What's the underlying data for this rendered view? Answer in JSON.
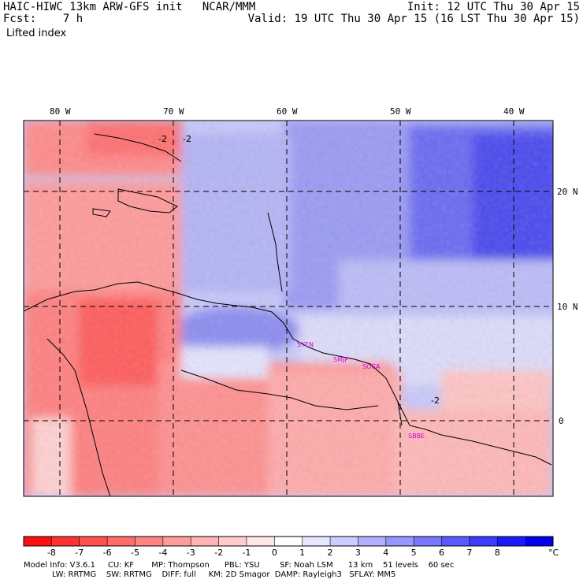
{
  "header": {
    "line1_left": "HAIC-HIWC 13km ARW-GFS init   NCAR/MMM",
    "line2_left": "Fcst:    7 h",
    "line3_left": "Lifted index",
    "line1_right": "Init: 12 UTC Thu 30 Apr 15",
    "line2_right": "Valid: 19 UTC Thu 30 Apr 15 (16 LST Thu 30 Apr 15)"
  },
  "map": {
    "lon_labels": [
      "80 W",
      "70 W",
      "60 W",
      "50 W",
      "40 W"
    ],
    "lat_labels": [
      "20 N",
      "10 N",
      "0"
    ],
    "contour_labels": [
      "-2",
      "-2",
      "-2"
    ],
    "stations": [
      "SYEN",
      "SMJP",
      "SOCA",
      "SBBE"
    ]
  },
  "colorbar": {
    "ticks": [
      "-8",
      "-7",
      "-6",
      "-5",
      "-4",
      "-3",
      "-2",
      "-1",
      "0",
      "1",
      "2",
      "3",
      "4",
      "5",
      "6",
      "7",
      "8"
    ],
    "unit": "°C",
    "colors": [
      "#ff1010",
      "#ff3333",
      "#ff5050",
      "#ff6a6a",
      "#ff8585",
      "#ff9c9c",
      "#ffb3b3",
      "#ffcccc",
      "#ffe6e6",
      "#ffffff",
      "#e6e6ff",
      "#ccccff",
      "#b0b0ff",
      "#9696ff",
      "#7878ff",
      "#5a5aff",
      "#3c3cff",
      "#1a1aff",
      "#0000ee"
    ]
  },
  "footer": {
    "line1": "Model Info: V3.6.1     CU: KF       MP: Thompson      PBL: YSU        SF: Noah LSM      13 km    51 levels    60 sec",
    "line2": "LW: RRTMG    SW: RRTMG    DIFF: full     KM: 2D Smagor  DAMP: Rayleigh3   SFLAY: MM5"
  }
}
